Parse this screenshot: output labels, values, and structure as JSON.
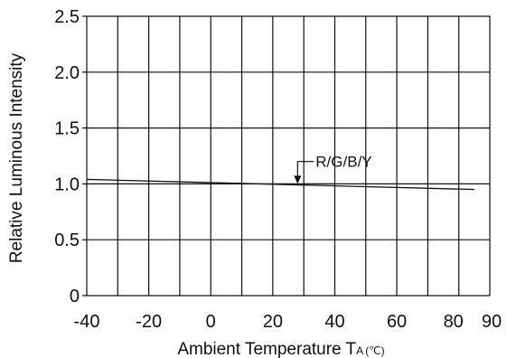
{
  "chart_data": {
    "type": "line",
    "xlabel": "Ambient Temperature T",
    "xlabel_subscript": "A",
    "xlabel_unit": "(℃)",
    "ylabel": "Relative Luminous Intensity",
    "xlim": [
      -40,
      90
    ],
    "ylim": [
      0,
      2.5
    ],
    "x_ticks": [
      -40,
      -20,
      0,
      20,
      40,
      60,
      80,
      90
    ],
    "y_ticks": [
      0,
      0.5,
      1.0,
      1.5,
      2.0,
      2.5
    ],
    "x_tick_labels": [
      "-40",
      "-20",
      "0",
      "20",
      "40",
      "60",
      "80",
      "90"
    ],
    "y_tick_labels": [
      "0",
      "0.5",
      "1.0",
      "1.5",
      "2.0",
      "2.5"
    ],
    "x_grid_lines": [
      -40,
      -30,
      -20,
      -10,
      0,
      10,
      20,
      30,
      40,
      50,
      60,
      70,
      80,
      90
    ],
    "y_grid_lines": [
      0,
      0.5,
      1.0,
      1.5,
      2.0,
      2.5
    ],
    "grid": true,
    "series": [
      {
        "name": "R/G/B/Y",
        "x": [
          -40,
          85
        ],
        "y": [
          1.04,
          0.95
        ]
      }
    ],
    "annotation": {
      "text": "R/G/B/Y",
      "x": 28,
      "y": 1.0
    }
  }
}
